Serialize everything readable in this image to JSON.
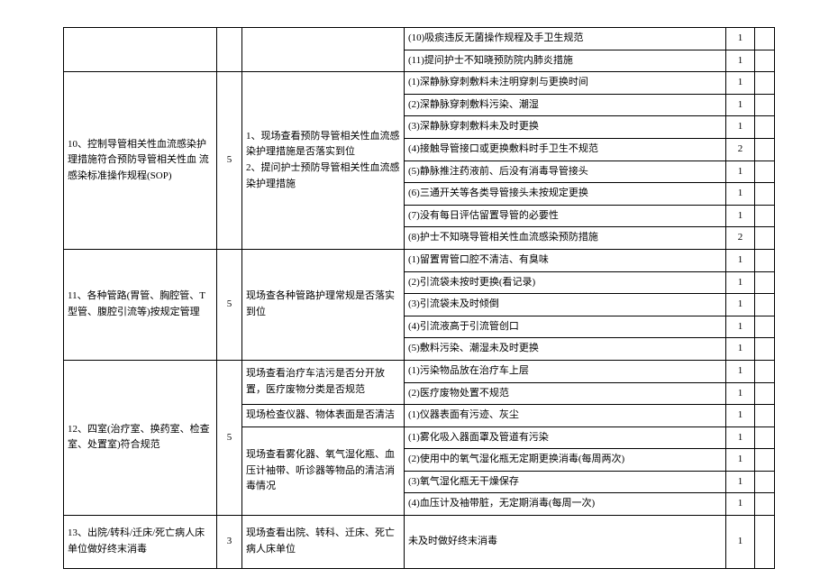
{
  "rows": [
    {
      "detail": "(10)吸痰违反无菌操作规程及手卫生规范",
      "pts": "1"
    },
    {
      "detail": "(11)提问护士不知晓预防院内肺炎措施",
      "pts": "1"
    },
    {
      "item": "10、控制导管相关性血流感染护 理措施符合预防导管相关性血 流感染标准操作规程(SOP)",
      "score": "5",
      "method": "1、现场查看预防导管相关性血流感染护理措施是否落实到位\n2、提问护士预防导管相关性血流感染护理措施",
      "detail": "(1)深静脉穿刺敷料未注明穿刺与更换时间",
      "pts": "1"
    },
    {
      "detail": "(2)深静脉穿刺敷料污染、潮湿",
      "pts": "1"
    },
    {
      "detail": "(3)深静脉穿刺敷料未及时更换",
      "pts": "1"
    },
    {
      "detail": "(4)接触导管接口或更换敷料时手卫生不规范",
      "pts": "2"
    },
    {
      "detail": "(5)静脉推注药液前、后没有消毒导管接头",
      "pts": "1"
    },
    {
      "detail": "(6)三通开关等各类导管接头未按规定更换",
      "pts": "1"
    },
    {
      "detail": "(7)没有每日评估留置导管的必要性",
      "pts": "1"
    },
    {
      "detail": "(8)护士不知晓导管相关性血流感染预防措施",
      "pts": "2"
    },
    {
      "item": "11、各种管路(胃管、胸腔管、T型管、腹腔引流等)按规定管理",
      "score": "5",
      "method": "现场查各种管路护理常规是否落实到位",
      "detail": "(1)留置胃管口腔不清洁、有臭味",
      "pts": "1"
    },
    {
      "detail": "(2)引流袋未按时更换(看记录)",
      "pts": "1"
    },
    {
      "detail": "(3)引流袋未及时倾倒",
      "pts": "1"
    },
    {
      "detail": "(4)引流液高于引流管创口",
      "pts": "1"
    },
    {
      "detail": "(5)敷料污染、潮湿未及时更换",
      "pts": "1"
    },
    {
      "item": "12、四室(治疗室、换药室、检查室、处置室)符合规范",
      "score": "5",
      "method": "现场查看治疗车洁污是否分开放置，医疗废物分类是否规范\n现场检查仪器、物体表面是否清洁\n现场查看雾化器、氧气湿化瓶、血压计袖带、听诊器等物品的清洁消毒情况",
      "detail": "(1)污染物品放在治疗车上层",
      "pts": "1"
    },
    {
      "detail": "(2)医疗废物处置不规范",
      "pts": "1"
    },
    {
      "detail": "(1)仪器表面有污迹、灰尘",
      "pts": "1"
    },
    {
      "detail": "(1)雾化吸入器面罩及管道有污染",
      "pts": "1"
    },
    {
      "detail": "(2)使用中的氧气湿化瓶无定期更换消毒(每周两次)",
      "pts": "1"
    },
    {
      "detail": "(3)氧气湿化瓶无干燥保存",
      "pts": "1"
    },
    {
      "detail": "(4)血压计及袖带脏，无定期消毒(每周一次)",
      "pts": "1"
    },
    {
      "item": "13、出院/转科/迁床/死亡病人床单位做好终末消毒",
      "score": "3",
      "method": "现场查看出院、转科、迁床、死亡病人床单位",
      "detail": "未及时做好终末消毒",
      "pts": "1"
    }
  ],
  "spans": {
    "prevRowSpan": 2,
    "group10": 8,
    "group11": 5,
    "group12": 7,
    "group12_m1": 2,
    "group12_m2": 1,
    "group12_m3": 4,
    "group13": 1
  }
}
